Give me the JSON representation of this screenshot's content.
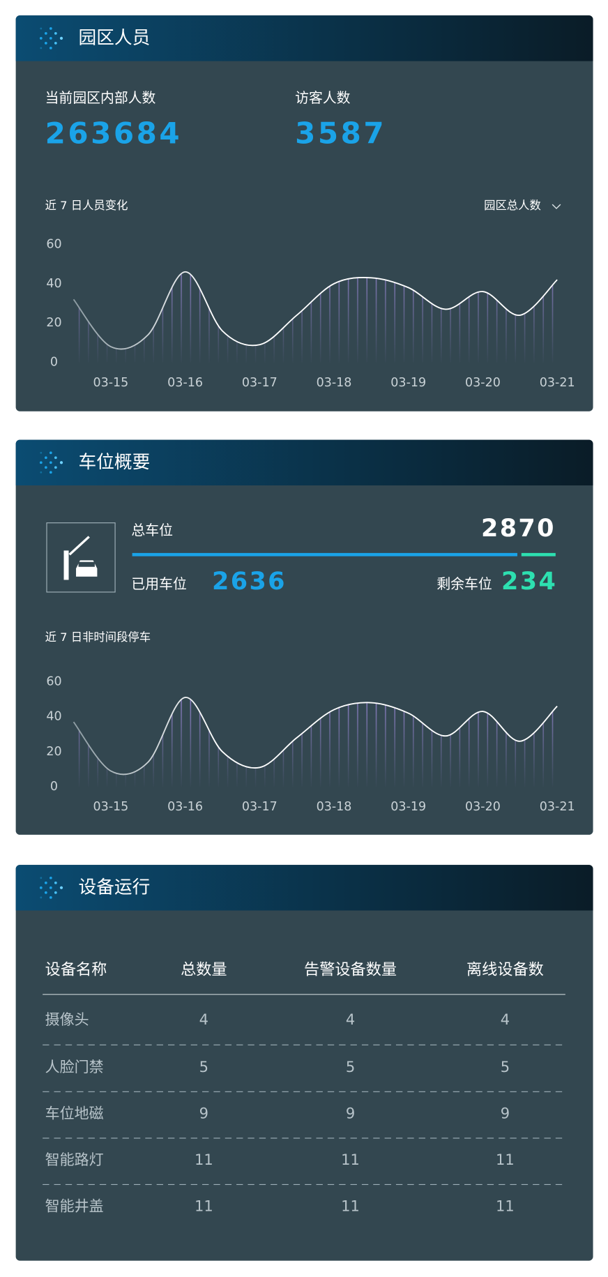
{
  "people": {
    "title": "园区人员",
    "stats": [
      {
        "label": "当前园区内部人数",
        "value": 263684
      },
      {
        "label": "访客人数",
        "value": 3587
      }
    ],
    "dropdown": "园区总人数"
  },
  "parking": {
    "title": "车位概要",
    "total_label": "总车位",
    "total": 2870,
    "used_label": "已用车位",
    "used": 2636,
    "remaining_label": "剩余车位",
    "remaining": 234
  },
  "devices": {
    "title": "设备运行",
    "columns": [
      "设备名称",
      "总数量",
      "告警设备数量",
      "离线设备数"
    ],
    "rows": [
      [
        "摄像头",
        4,
        4,
        4
      ],
      [
        "人脸门禁",
        5,
        5,
        5
      ],
      [
        "车位地磁",
        9,
        9,
        9
      ],
      [
        "智能路灯",
        11,
        11,
        11
      ],
      [
        "智能井盖",
        11,
        11,
        11
      ]
    ]
  },
  "chart_data": [
    {
      "type": "line",
      "title": "近 7 日人员变化",
      "categories": [
        null,
        "03-15",
        null,
        "03-16",
        null,
        "03-17",
        null,
        "03-18",
        null,
        "03-19",
        null,
        "03-20",
        null,
        "03-21"
      ],
      "values": [
        32,
        8,
        14,
        46,
        16,
        9,
        24,
        40,
        43,
        38,
        27,
        36,
        24,
        42
      ],
      "color": "#ffffff",
      "ylim": [
        0,
        60
      ],
      "yticks": [
        0,
        20,
        40,
        60
      ]
    },
    {
      "type": "line",
      "title": "近 7 日非时间段停车",
      "categories": [
        null,
        "03-15",
        null,
        "03-16",
        null,
        "03-17",
        null,
        "03-18",
        null,
        "03-19",
        null,
        "03-20",
        null,
        "03-21"
      ],
      "values": [
        37,
        9,
        14,
        51,
        20,
        11,
        28,
        44,
        48,
        42,
        29,
        43,
        26,
        46
      ],
      "color": "#ffffff",
      "ylim": [
        0,
        60
      ],
      "yticks": [
        0,
        20,
        40,
        60
      ]
    }
  ]
}
